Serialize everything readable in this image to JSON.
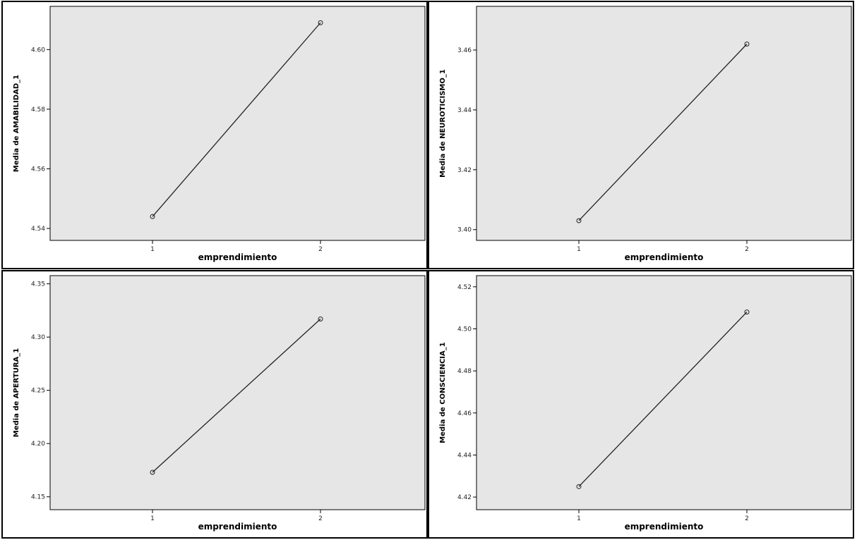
{
  "chart_data": [
    {
      "type": "line",
      "xlabel": "emprendimiento",
      "ylabel": "Media de AMABILIDAD_1",
      "categories": [
        "1",
        "2"
      ],
      "series": [
        {
          "values": [
            4.544,
            4.609
          ]
        }
      ],
      "yticks": [
        "4.54",
        "4.56",
        "4.58",
        "4.60"
      ],
      "ylim": [
        4.536,
        4.6145
      ],
      "grid": false
    },
    {
      "type": "line",
      "xlabel": "emprendimiento",
      "ylabel": "Media de NEUROTICISMO_1",
      "categories": [
        "1",
        "2"
      ],
      "series": [
        {
          "values": [
            3.403,
            3.462
          ]
        }
      ],
      "yticks": [
        "3.40",
        "3.42",
        "3.44",
        "3.46"
      ],
      "ylim": [
        3.3964,
        3.4746
      ],
      "grid": false
    },
    {
      "type": "line",
      "xlabel": "emprendimiento",
      "ylabel": "Media de APERTURA_1",
      "categories": [
        "1",
        "2"
      ],
      "series": [
        {
          "values": [
            4.173,
            4.317
          ]
        }
      ],
      "yticks": [
        "4.15",
        "4.20",
        "4.25",
        "4.30",
        "4.35"
      ],
      "ylim": [
        4.1379,
        4.3577
      ],
      "grid": false
    },
    {
      "type": "line",
      "xlabel": "emprendimiento",
      "ylabel": "Media de CONSCIENCIA_1",
      "categories": [
        "1",
        "2"
      ],
      "series": [
        {
          "values": [
            4.425,
            4.508
          ]
        }
      ],
      "yticks": [
        "4.42",
        "4.44",
        "4.46",
        "4.48",
        "4.50",
        "4.52"
      ],
      "ylim": [
        4.414,
        4.5253
      ],
      "grid": false
    }
  ]
}
